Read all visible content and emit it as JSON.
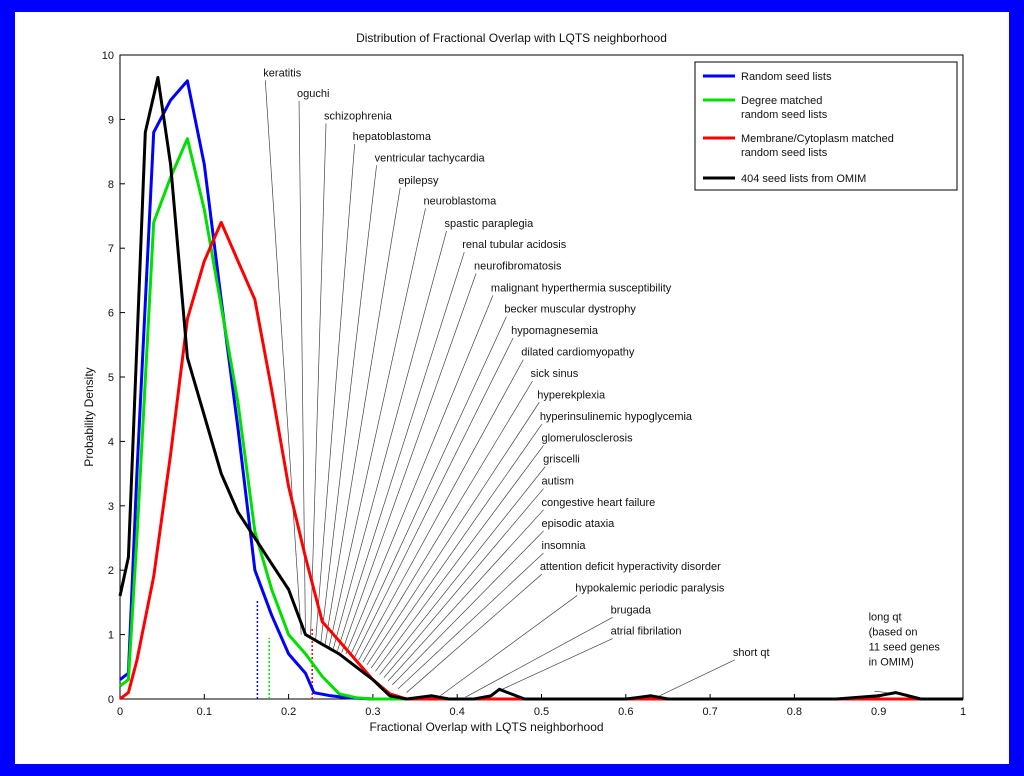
{
  "chart_data": {
    "type": "line",
    "title": "Distribution of Fractional Overlap with LQTS neighborhood",
    "xlabel": "Fractional Overlap with LQTS neighborhood",
    "ylabel": "Probability Density",
    "xlim": [
      0,
      1
    ],
    "ylim": [
      0,
      10
    ],
    "x_ticks": [
      0,
      0.1,
      0.2,
      0.3,
      0.4,
      0.5,
      0.6,
      0.7,
      0.8,
      0.9,
      1
    ],
    "x_tick_labels": [
      "0",
      "0.1",
      "0.2",
      "0.3",
      "0.4",
      "0.5",
      "0.6",
      "0.7",
      "0.8",
      "0.9",
      "1"
    ],
    "y_ticks": [
      0,
      1,
      2,
      3,
      4,
      5,
      6,
      7,
      8,
      9,
      10
    ],
    "y_tick_labels": [
      "0",
      "1",
      "2",
      "3",
      "4",
      "5",
      "6",
      "7",
      "8",
      "9",
      "10"
    ],
    "grid": false,
    "legend_position": "top-right",
    "series": [
      {
        "name": "Random seed lists",
        "color": "#0000ff",
        "x": [
          0,
          0.01,
          0.02,
          0.04,
          0.06,
          0.08,
          0.1,
          0.12,
          0.14,
          0.16,
          0.18,
          0.2,
          0.22,
          0.23,
          0.25,
          0.27,
          0.3,
          1
        ],
        "y": [
          0.3,
          0.4,
          3.5,
          8.8,
          9.3,
          9.6,
          8.3,
          6.2,
          4.2,
          2.0,
          1.3,
          0.7,
          0.4,
          0.1,
          0.05,
          0.02,
          0,
          0
        ]
      },
      {
        "name": "Degree matched random seed lists",
        "color": "#00e000",
        "x": [
          0,
          0.01,
          0.02,
          0.04,
          0.06,
          0.08,
          0.1,
          0.12,
          0.14,
          0.16,
          0.18,
          0.2,
          0.22,
          0.24,
          0.26,
          0.28,
          0.3,
          1
        ],
        "y": [
          0.2,
          0.3,
          2.5,
          7.4,
          8.1,
          8.7,
          7.6,
          6.1,
          4.6,
          2.6,
          1.7,
          1.0,
          0.7,
          0.35,
          0.08,
          0.02,
          0,
          0
        ]
      },
      {
        "name": "Membrane/Cytoplasm matched random seed lists",
        "color": "#ff0000",
        "x": [
          0,
          0.01,
          0.02,
          0.04,
          0.06,
          0.08,
          0.1,
          0.12,
          0.14,
          0.16,
          0.18,
          0.2,
          0.22,
          0.24,
          0.26,
          0.28,
          0.3,
          0.32,
          0.34,
          1
        ],
        "y": [
          0,
          0.1,
          0.6,
          1.9,
          3.8,
          5.9,
          6.8,
          7.4,
          6.8,
          6.2,
          4.8,
          3.3,
          2.2,
          1.2,
          0.9,
          0.6,
          0.3,
          0.08,
          0,
          0
        ]
      },
      {
        "name": "404 seed lists from OMIM",
        "color": "#000000",
        "x": [
          0,
          0.01,
          0.02,
          0.03,
          0.045,
          0.06,
          0.08,
          0.1,
          0.12,
          0.14,
          0.16,
          0.18,
          0.2,
          0.22,
          0.24,
          0.26,
          0.28,
          0.3,
          0.32,
          0.34,
          0.37,
          0.39,
          0.42,
          0.44,
          0.45,
          0.46,
          0.48,
          0.5,
          0.55,
          0.6,
          0.63,
          0.65,
          0.7,
          0.8,
          0.85,
          0.9,
          0.92,
          0.95,
          1
        ],
        "y": [
          1.6,
          2.2,
          5.5,
          8.8,
          9.65,
          8.3,
          5.3,
          4.4,
          3.5,
          2.9,
          2.5,
          2.1,
          1.7,
          1.0,
          0.85,
          0.7,
          0.5,
          0.3,
          0.05,
          0,
          0.05,
          0,
          0,
          0.05,
          0.15,
          0.1,
          0,
          0,
          0,
          0,
          0.05,
          0,
          0,
          0,
          0,
          0.05,
          0.1,
          0,
          0
        ]
      }
    ],
    "vlines": [
      {
        "x": 0.163,
        "y": 1.55,
        "color": "#0000ff"
      },
      {
        "x": 0.177,
        "y": 0.95,
        "color": "#00e000"
      },
      {
        "x": 0.228,
        "y": 1.1,
        "color": "#ff0000"
      }
    ],
    "annotations": [
      {
        "text": "keratitis",
        "tx": 0.17,
        "ty": 9.67,
        "px": 0.215,
        "py": 1.0
      },
      {
        "text": "oguchi",
        "tx": 0.21,
        "ty": 9.35,
        "px": 0.22,
        "py": 1.0
      },
      {
        "text": "schizophrenia",
        "tx": 0.242,
        "ty": 9.0,
        "px": 0.226,
        "py": 0.95
      },
      {
        "text": "hepatoblastoma",
        "tx": 0.276,
        "ty": 8.68,
        "px": 0.232,
        "py": 0.9
      },
      {
        "text": "ventricular tachycardia",
        "tx": 0.302,
        "ty": 8.35,
        "px": 0.238,
        "py": 0.85
      },
      {
        "text": "epilepsy",
        "tx": 0.33,
        "ty": 8.0,
        "px": 0.243,
        "py": 0.82
      },
      {
        "text": "neuroblastoma",
        "tx": 0.36,
        "ty": 7.68,
        "px": 0.248,
        "py": 0.8
      },
      {
        "text": "spastic paraplegia",
        "tx": 0.385,
        "ty": 7.33,
        "px": 0.253,
        "py": 0.78
      },
      {
        "text": "renal tubular acidosis",
        "tx": 0.406,
        "ty": 7.0,
        "px": 0.258,
        "py": 0.75
      },
      {
        "text": "neurofibromatosis",
        "tx": 0.42,
        "ty": 6.67,
        "px": 0.263,
        "py": 0.72
      },
      {
        "text": "malignant hyperthermia susceptibility",
        "tx": 0.44,
        "ty": 6.33,
        "px": 0.268,
        "py": 0.7
      },
      {
        "text": "becker muscular dystrophy",
        "tx": 0.456,
        "ty": 6.0,
        "px": 0.273,
        "py": 0.67
      },
      {
        "text": "hypomagnesemia",
        "tx": 0.464,
        "ty": 5.67,
        "px": 0.278,
        "py": 0.64
      },
      {
        "text": "dilated cardiomyopathy",
        "tx": 0.476,
        "ty": 5.33,
        "px": 0.283,
        "py": 0.6
      },
      {
        "text": "sick sinus",
        "tx": 0.487,
        "ty": 5.0,
        "px": 0.288,
        "py": 0.57
      },
      {
        "text": "hyperekplexia",
        "tx": 0.495,
        "ty": 4.67,
        "px": 0.293,
        "py": 0.53
      },
      {
        "text": "hyperinsulinemic hypoglycemia",
        "tx": 0.498,
        "ty": 4.33,
        "px": 0.298,
        "py": 0.48
      },
      {
        "text": "glomerulosclerosis",
        "tx": 0.5,
        "ty": 4.0,
        "px": 0.303,
        "py": 0.43
      },
      {
        "text": "griscelli",
        "tx": 0.502,
        "ty": 3.67,
        "px": 0.308,
        "py": 0.38
      },
      {
        "text": "autism",
        "tx": 0.5,
        "ty": 3.33,
        "px": 0.313,
        "py": 0.33
      },
      {
        "text": "congestive heart failure",
        "tx": 0.5,
        "ty": 3.0,
        "px": 0.318,
        "py": 0.28
      },
      {
        "text": "episodic ataxia",
        "tx": 0.5,
        "ty": 2.67,
        "px": 0.323,
        "py": 0.22
      },
      {
        "text": "insomnia",
        "tx": 0.5,
        "ty": 2.33,
        "px": 0.33,
        "py": 0.16
      },
      {
        "text": "attention deficit hyperactivity disorder",
        "tx": 0.498,
        "ty": 2.0,
        "px": 0.34,
        "py": 0.1
      },
      {
        "text": "hypokalemic periodic paralysis",
        "tx": 0.54,
        "ty": 1.67,
        "px": 0.38,
        "py": 0.05
      },
      {
        "text": "brugada",
        "tx": 0.582,
        "ty": 1.33,
        "px": 0.41,
        "py": 0.03
      },
      {
        "text": "atrial fibrilation",
        "tx": 0.582,
        "ty": 1.0,
        "px": 0.445,
        "py": 0.1
      },
      {
        "text": "short qt",
        "tx": 0.727,
        "ty": 0.67,
        "px": 0.64,
        "py": 0.05
      }
    ],
    "long_qt_label": [
      "long qt",
      "(based on",
      "11 seed genes",
      "in OMIM)"
    ],
    "long_qt_point": {
      "x": 0.91,
      "y": 0.1
    }
  }
}
